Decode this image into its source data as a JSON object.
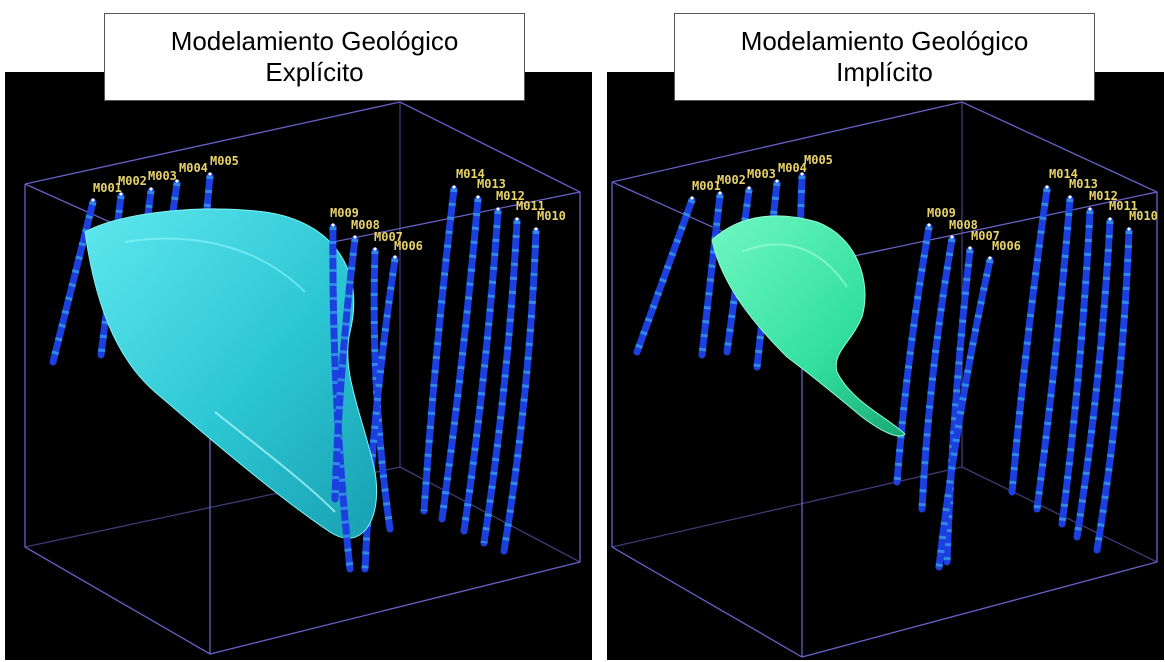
{
  "colors": {
    "background": "#000000",
    "bounding_box": "#6a5fc4",
    "label": "#e8d36a",
    "explicit_surface": "#3fd6e0",
    "implicit_surface": "#3cf0ad",
    "drillhole": "#1c3fe0"
  },
  "panels": [
    {
      "title_line1": "Modelamiento Geológico",
      "title_line2": "Explícito",
      "holes": [
        "M001",
        "M002",
        "M003",
        "M004",
        "M005",
        "M009",
        "M008",
        "M007",
        "M006",
        "M014",
        "M013",
        "M012",
        "M011",
        "M010"
      ]
    },
    {
      "title_line1": "Modelamiento Geológico",
      "title_line2": "Implícito",
      "holes": [
        "M001",
        "M002",
        "M003",
        "M004",
        "M005",
        "M009",
        "M008",
        "M007",
        "M006",
        "M014",
        "M013",
        "M012",
        "M011",
        "M010"
      ]
    }
  ]
}
